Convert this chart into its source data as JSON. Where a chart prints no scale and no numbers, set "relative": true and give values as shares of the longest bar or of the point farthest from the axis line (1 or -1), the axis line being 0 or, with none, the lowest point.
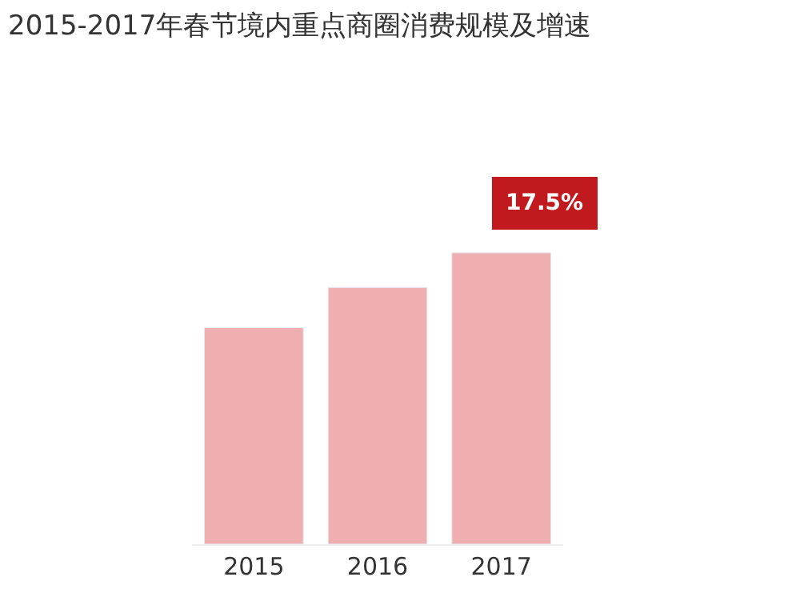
{
  "chart_data": {
    "type": "bar",
    "title": "2015-2017年春节境内重点商圈消费规模及增速",
    "categories": [
      "2015",
      "2016",
      "2017"
    ],
    "values": [
      0.743,
      0.881,
      1
    ],
    "color": "#efafb0",
    "relative": true,
    "annotations": [
      "17.5%"
    ]
  }
}
